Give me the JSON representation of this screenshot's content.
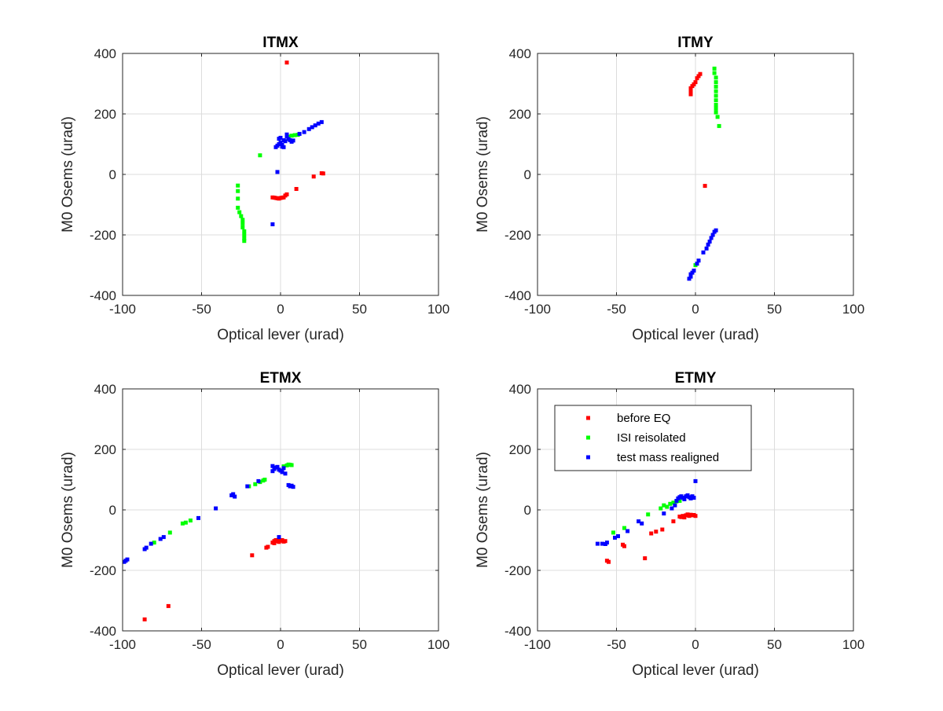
{
  "colors": {
    "before_eq": "#ff0000",
    "isi_reisolated": "#00ff00",
    "test_mass_realigned": "#0000ff",
    "grid": "#dcdcdc",
    "axis": "#262626"
  },
  "legend": {
    "placement": "top-left",
    "shown_in": "ETMY",
    "entries": [
      "before EQ",
      "ISI reisolated",
      "test mass realigned"
    ]
  },
  "chart_data": [
    {
      "type": "scatter",
      "title": "ITMX",
      "xlabel": "Optical lever (urad)",
      "ylabel": "M0 Osems (urad)",
      "xlim": [
        -100,
        100
      ],
      "ylim": [
        -400,
        400
      ],
      "xticks": [
        "-100",
        "-50",
        "0",
        "50",
        "100"
      ],
      "yticks": [
        "400",
        "200",
        "0",
        "-200",
        "-400"
      ],
      "grid": true,
      "series": [
        {
          "name": "before EQ",
          "points": [
            [
              4,
              370
            ],
            [
              -5,
              -76
            ],
            [
              -4,
              -77
            ],
            [
              -3,
              -78
            ],
            [
              -2,
              -79
            ],
            [
              -1,
              -80
            ],
            [
              0,
              -78
            ],
            [
              1,
              -77
            ],
            [
              2,
              -76
            ],
            [
              3,
              -70
            ],
            [
              4,
              -66
            ],
            [
              10,
              -48
            ],
            [
              21,
              -7
            ],
            [
              26,
              4
            ],
            [
              27,
              3
            ]
          ]
        },
        {
          "name": "ISI reisolated",
          "points": [
            [
              -27,
              -37
            ],
            [
              -27,
              -55
            ],
            [
              -27,
              -80
            ],
            [
              -27,
              -110
            ],
            [
              -26,
              -125
            ],
            [
              -25,
              -138
            ],
            [
              -24,
              -150
            ],
            [
              -24,
              -162
            ],
            [
              -24,
              -175
            ],
            [
              -23,
              -188
            ],
            [
              -23,
              -200
            ],
            [
              -23,
              -212
            ],
            [
              -23,
              -220
            ],
            [
              -13,
              63
            ],
            [
              5,
              125
            ],
            [
              7,
              128
            ],
            [
              9,
              130
            ],
            [
              11,
              131
            ]
          ]
        },
        {
          "name": "test mass realigned",
          "points": [
            [
              -5,
              -165
            ],
            [
              -2,
              8
            ],
            [
              -3,
              90
            ],
            [
              -2,
              95
            ],
            [
              -1,
              100
            ],
            [
              0,
              105
            ],
            [
              1,
              92
            ],
            [
              -1,
              118
            ],
            [
              0,
              121
            ],
            [
              2,
              113
            ],
            [
              1,
              98
            ],
            [
              3,
              110
            ],
            [
              4,
              125
            ],
            [
              4,
              132
            ],
            [
              5,
              117
            ],
            [
              6,
              113
            ],
            [
              7,
              108
            ],
            [
              2,
              90
            ],
            [
              8,
              112
            ],
            [
              12,
              134
            ],
            [
              15,
              140
            ],
            [
              18,
              150
            ],
            [
              20,
              156
            ],
            [
              22,
              162
            ],
            [
              24,
              168
            ],
            [
              26,
              173
            ]
          ]
        }
      ]
    },
    {
      "type": "scatter",
      "title": "ITMY",
      "xlabel": "Optical lever (urad)",
      "ylabel": "M0 Osems (urad)",
      "xlim": [
        -100,
        100
      ],
      "ylim": [
        -400,
        400
      ],
      "xticks": [
        "-100",
        "-50",
        "0",
        "50",
        "100"
      ],
      "yticks": [
        "400",
        "200",
        "0",
        "-200",
        "-400"
      ],
      "grid": true,
      "series": [
        {
          "name": "before EQ",
          "points": [
            [
              -3,
              265
            ],
            [
              -3,
              275
            ],
            [
              -3,
              285
            ],
            [
              -2,
              292
            ],
            [
              -1,
              298
            ],
            [
              0,
              305
            ],
            [
              1,
              318
            ],
            [
              2,
              325
            ],
            [
              3,
              332
            ],
            [
              6,
              -38
            ]
          ]
        },
        {
          "name": "ISI reisolated",
          "points": [
            [
              12,
              350
            ],
            [
              12,
              335
            ],
            [
              13,
              320
            ],
            [
              13,
              305
            ],
            [
              13,
              290
            ],
            [
              13,
              275
            ],
            [
              13,
              260
            ],
            [
              13,
              245
            ],
            [
              13,
              230
            ],
            [
              13,
              218
            ],
            [
              13,
              205
            ],
            [
              14,
              190
            ],
            [
              15,
              160
            ],
            [
              0,
              -300
            ]
          ]
        },
        {
          "name": "test mass realigned",
          "points": [
            [
              -4,
              -345
            ],
            [
              -3,
              -338
            ],
            [
              -3,
              -330
            ],
            [
              -2,
              -325
            ],
            [
              -1,
              -318
            ],
            [
              1,
              -295
            ],
            [
              2,
              -285
            ],
            [
              5,
              -258
            ],
            [
              7,
              -245
            ],
            [
              8,
              -232
            ],
            [
              9,
              -222
            ],
            [
              10,
              -210
            ],
            [
              11,
              -200
            ],
            [
              12,
              -190
            ],
            [
              13,
              -185
            ]
          ]
        }
      ]
    },
    {
      "type": "scatter",
      "title": "ETMX",
      "xlabel": "Optical lever (urad)",
      "ylabel": "M0 Osems (urad)",
      "xlim": [
        -100,
        100
      ],
      "ylim": [
        -400,
        400
      ],
      "xticks": [
        "-100",
        "-50",
        "0",
        "50",
        "100"
      ],
      "yticks": [
        "400",
        "200",
        "0",
        "-200",
        "-400"
      ],
      "grid": true,
      "series": [
        {
          "name": "before EQ",
          "points": [
            [
              -86,
              -362
            ],
            [
              -71,
              -318
            ],
            [
              -18,
              -150
            ],
            [
              -9,
              -125
            ],
            [
              -8,
              -122
            ],
            [
              -5,
              -108
            ],
            [
              -4,
              -103
            ],
            [
              -3,
              -100
            ],
            [
              -2,
              -104
            ],
            [
              -1,
              -106
            ],
            [
              0,
              -102
            ],
            [
              1,
              -100
            ],
            [
              2,
              -105
            ],
            [
              3,
              -103
            ],
            [
              -4,
              -110
            ],
            [
              -1,
              -98
            ]
          ]
        },
        {
          "name": "ISI reisolated",
          "points": [
            [
              -80,
              -108
            ],
            [
              -70,
              -75
            ],
            [
              -62,
              -45
            ],
            [
              -60,
              -42
            ],
            [
              -57,
              -35
            ],
            [
              -20,
              78
            ],
            [
              -16,
              85
            ],
            [
              -13,
              92
            ],
            [
              -11,
              97
            ],
            [
              -10,
              100
            ],
            [
              2,
              144
            ],
            [
              4,
              147
            ],
            [
              5,
              150
            ],
            [
              6,
              149
            ],
            [
              7,
              148
            ]
          ]
        },
        {
          "name": "test mass realigned",
          "points": [
            [
              -99,
              -172
            ],
            [
              -98,
              -168
            ],
            [
              -97,
              -164
            ],
            [
              -86,
              -130
            ],
            [
              -85,
              -125
            ],
            [
              -82,
              -112
            ],
            [
              -76,
              -96
            ],
            [
              -74,
              -90
            ],
            [
              -52,
              -27
            ],
            [
              -41,
              5
            ],
            [
              -31,
              48
            ],
            [
              -30,
              52
            ],
            [
              -29,
              44
            ],
            [
              -21,
              78
            ],
            [
              -14,
              95
            ],
            [
              -5,
              128
            ],
            [
              -4,
              135
            ],
            [
              -3,
              140
            ],
            [
              -2,
              142
            ],
            [
              -1,
              133
            ],
            [
              0,
              130
            ],
            [
              1,
              125
            ],
            [
              2,
              138
            ],
            [
              3,
              120
            ],
            [
              -5,
              145
            ],
            [
              5,
              82
            ],
            [
              6,
              78
            ],
            [
              7,
              80
            ],
            [
              8,
              76
            ],
            [
              -1,
              -90
            ]
          ]
        }
      ]
    },
    {
      "type": "scatter",
      "title": "ETMY",
      "xlabel": "Optical lever (urad)",
      "ylabel": "M0 Osems (urad)",
      "xlim": [
        -100,
        100
      ],
      "ylim": [
        -400,
        400
      ],
      "xticks": [
        "-100",
        "-50",
        "0",
        "50",
        "100"
      ],
      "yticks": [
        "400",
        "200",
        "0",
        "-200",
        "-400"
      ],
      "grid": true,
      "series": [
        {
          "name": "before EQ",
          "points": [
            [
              -56,
              -168
            ],
            [
              -55,
              -172
            ],
            [
              -46,
              -115
            ],
            [
              -45,
              -120
            ],
            [
              -32,
              -160
            ],
            [
              -28,
              -78
            ],
            [
              -25,
              -72
            ],
            [
              -21,
              -65
            ],
            [
              -14,
              -38
            ],
            [
              -10,
              -22
            ],
            [
              -8,
              -20
            ],
            [
              -6,
              -18
            ],
            [
              -5,
              -15
            ],
            [
              -4,
              -20
            ],
            [
              -3,
              -16
            ],
            [
              -2,
              -18
            ],
            [
              -1,
              -17
            ],
            [
              0,
              -20
            ],
            [
              -7,
              -25
            ],
            [
              -9,
              -24
            ]
          ]
        },
        {
          "name": "ISI reisolated",
          "points": [
            [
              -52,
              -75
            ],
            [
              -45,
              -60
            ],
            [
              -30,
              -15
            ],
            [
              -22,
              5
            ],
            [
              -20,
              15
            ],
            [
              -18,
              10
            ],
            [
              -16,
              20
            ],
            [
              -14,
              24
            ],
            [
              -12,
              28
            ],
            [
              -10,
              30
            ]
          ]
        },
        {
          "name": "test mass realigned",
          "points": [
            [
              -62,
              -112
            ],
            [
              -59,
              -112
            ],
            [
              -57,
              -113
            ],
            [
              -56,
              -108
            ],
            [
              -51,
              -92
            ],
            [
              -49,
              -87
            ],
            [
              -43,
              -70
            ],
            [
              -36,
              -38
            ],
            [
              -34,
              -45
            ],
            [
              -20,
              -12
            ],
            [
              -15,
              5
            ],
            [
              -13,
              15
            ],
            [
              -12,
              30
            ],
            [
              -11,
              38
            ],
            [
              -10,
              42
            ],
            [
              -9,
              45
            ],
            [
              -8,
              40
            ],
            [
              -7,
              35
            ],
            [
              -6,
              45
            ],
            [
              -5,
              48
            ],
            [
              -4,
              42
            ],
            [
              -3,
              38
            ],
            [
              -2,
              45
            ],
            [
              -1,
              40
            ],
            [
              0,
              95
            ]
          ]
        }
      ]
    }
  ]
}
